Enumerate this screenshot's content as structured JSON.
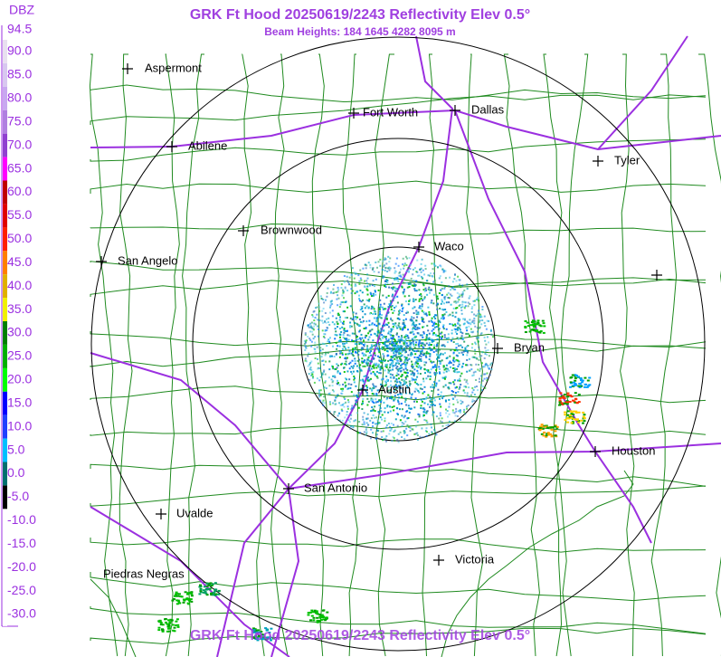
{
  "header": {
    "title": "GRK Ft Hood 20250619/2243 Reflectivity Elev 0.5°",
    "subtitle": "Beam Heights: 184 1645 4282 8095 m"
  },
  "legend": {
    "unit": "DBZ",
    "labels": [
      "94.5",
      "90.0",
      "85.0",
      "80.0",
      "75.0",
      "70.0",
      "65.0",
      "60.0",
      "55.0",
      "50.0",
      "45.0",
      "40.0",
      "35.0",
      "30.0",
      "25.0",
      "20.0",
      "15.0",
      "10.0",
      "5.0",
      "0.0",
      "-5.0",
      "-10.0",
      "-15.0",
      "-20.0",
      "-25.0",
      "-30.0"
    ]
  },
  "cities": [
    "Aspermont",
    "Fort Worth",
    "Dallas",
    "Abilene",
    "Tyler",
    "Brownwood",
    "Waco",
    "San Angelo",
    "Bryan",
    "Austin",
    "Houston",
    "San Antonio",
    "Uvalde",
    "Victoria",
    "Piedras Negras"
  ],
  "footer": {
    "title": "GRK Ft Hood 20250619/2243 Reflectivity Elev 0.5°"
  }
}
